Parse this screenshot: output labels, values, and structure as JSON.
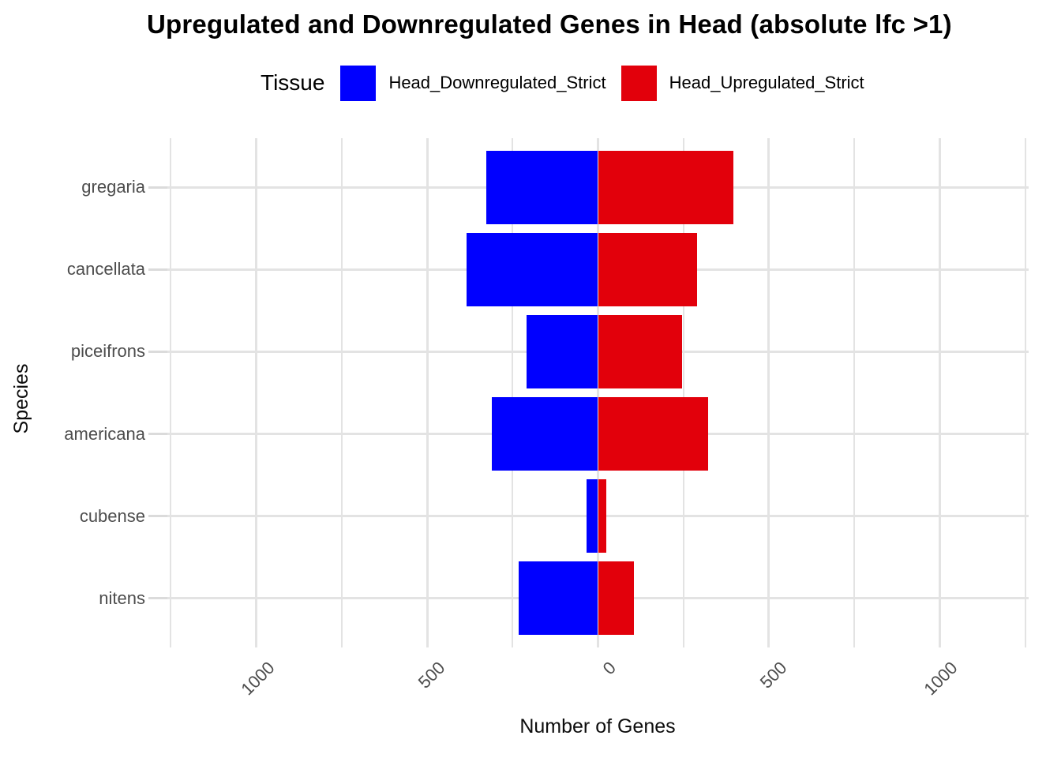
{
  "title": "Upregulated and Downregulated Genes in Head (absolute lfc >1)",
  "legend": {
    "title": "Tissue",
    "items": [
      {
        "label": "Head_Downregulated_Strict",
        "color": "#0000ff"
      },
      {
        "label": "Head_Upregulated_Strict",
        "color": "#e2000b"
      }
    ]
  },
  "chart_data": {
    "type": "bar",
    "orientation": "horizontal-diverging",
    "title": "Upregulated and Downregulated Genes in Head (absolute lfc >1)",
    "xlabel": "Number of Genes",
    "ylabel": "Species",
    "categories": [
      "gregaria",
      "cancellata",
      "piceifrons",
      "americana",
      "cubense",
      "nitens"
    ],
    "series": [
      {
        "name": "Head_Downregulated_Strict",
        "color": "#0000ff",
        "direction": "left",
        "values": [
          326,
          385,
          210,
          311,
          33,
          233
        ]
      },
      {
        "name": "Head_Upregulated_Strict",
        "color": "#e2000b",
        "direction": "right",
        "values": [
          396,
          290,
          245,
          322,
          25,
          104
        ]
      }
    ],
    "xlim": [
      -1260,
      1260
    ],
    "x_major_breaks": [
      -1000,
      -500,
      0,
      500,
      1000
    ],
    "x_major_labels": [
      "1000",
      "500",
      "0",
      "500",
      "1000"
    ],
    "x_minor_breaks": [
      -1250,
      -750,
      -250,
      250,
      750,
      1250
    ],
    "grid": true,
    "legend_position": "top",
    "bar_width_fraction": 0.9
  },
  "style": {
    "background": "#ffffff",
    "grid_color": "#e3e3e3",
    "tick_text_color": "#4d4d4d",
    "axis_title_color": "#0d0d0d",
    "title_color": "#000000"
  }
}
